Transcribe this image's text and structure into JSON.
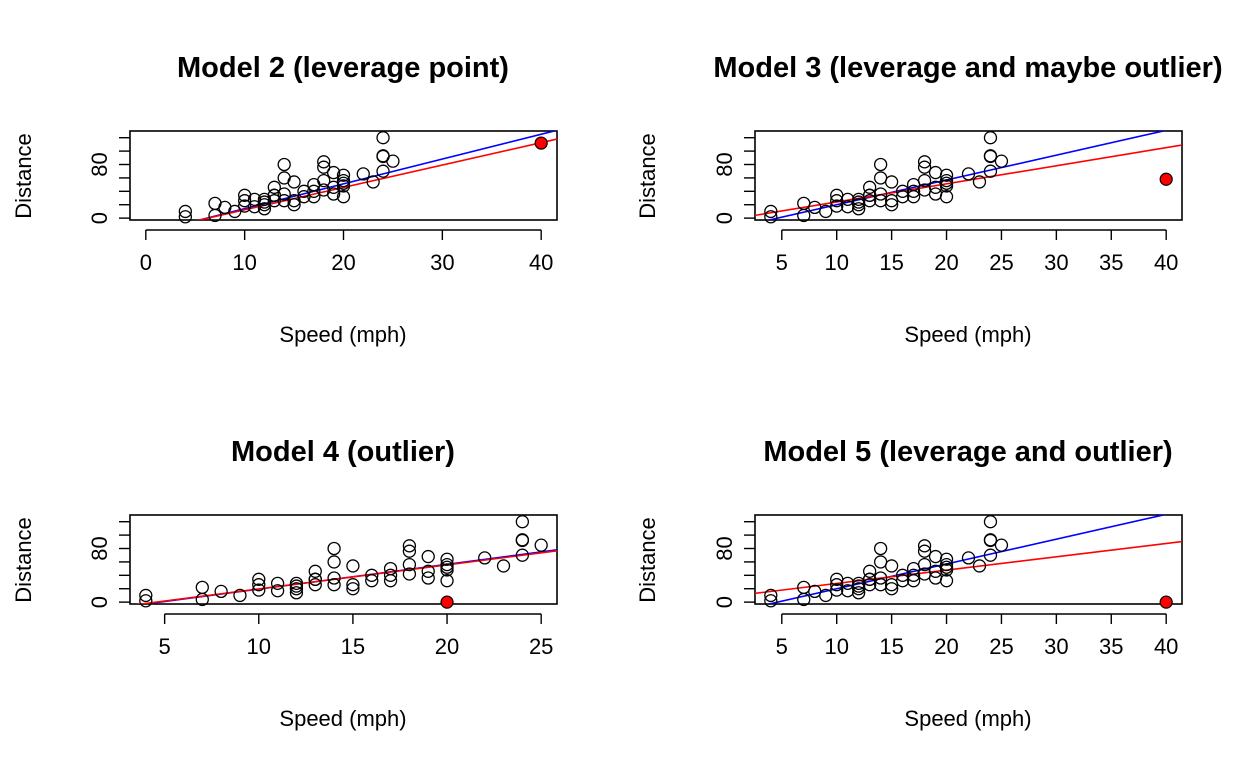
{
  "chart_data": [
    {
      "type": "scatter",
      "title": "Model 2 (leverage point)",
      "xlabel": "Speed (mph)",
      "ylabel": "Distance",
      "xlim": [
        -1.6,
        41.6
      ],
      "ylim": [
        -2.8,
        130
      ],
      "xticks": [
        "0",
        "10",
        "20",
        "30",
        "40"
      ],
      "yticks": [
        "0",
        "80"
      ],
      "points": [
        [
          4,
          2
        ],
        [
          4,
          10
        ],
        [
          7,
          4
        ],
        [
          7,
          22
        ],
        [
          8,
          16
        ],
        [
          9,
          10
        ],
        [
          10,
          18
        ],
        [
          10,
          26
        ],
        [
          10,
          34
        ],
        [
          11,
          17
        ],
        [
          11,
          28
        ],
        [
          12,
          14
        ],
        [
          12,
          20
        ],
        [
          12,
          24
        ],
        [
          12,
          28
        ],
        [
          13,
          26
        ],
        [
          13,
          34
        ],
        [
          13,
          34
        ],
        [
          13,
          46
        ],
        [
          14,
          26
        ],
        [
          14,
          36
        ],
        [
          14,
          60
        ],
        [
          14,
          80
        ],
        [
          15,
          20
        ],
        [
          15,
          26
        ],
        [
          15,
          54
        ],
        [
          16,
          32
        ],
        [
          16,
          40
        ],
        [
          17,
          32
        ],
        [
          17,
          40
        ],
        [
          17,
          50
        ],
        [
          18,
          42
        ],
        [
          18,
          56
        ],
        [
          18,
          76
        ],
        [
          18,
          84
        ],
        [
          19,
          36
        ],
        [
          19,
          46
        ],
        [
          19,
          68
        ],
        [
          20,
          32
        ],
        [
          20,
          48
        ],
        [
          20,
          52
        ],
        [
          20,
          56
        ],
        [
          20,
          64
        ],
        [
          22,
          66
        ],
        [
          23,
          54
        ],
        [
          24,
          70
        ],
        [
          24,
          92
        ],
        [
          24,
          93
        ],
        [
          24,
          120
        ],
        [
          25,
          85
        ]
      ],
      "special_point": [
        40,
        112
      ],
      "series": [
        {
          "name": "",
          "color": "#0000ff",
          "line": [
            [
              -1.6,
              -28.8
            ],
            [
              41.6,
              131.1
            ]
          ]
        },
        {
          "name": "",
          "color": "#ff0000",
          "line": [
            [
              -1.6,
              -26.4
            ],
            [
              41.6,
              118.0
            ]
          ]
        }
      ]
    },
    {
      "type": "scatter",
      "title": "Model 3 (leverage and maybe outlier)",
      "xlabel": "Speed (mph)",
      "ylabel": "Distance",
      "xlim": [
        2.56,
        41.44
      ],
      "ylim": [
        -2.8,
        130
      ],
      "xticks": [
        "5",
        "10",
        "15",
        "20",
        "25",
        "30",
        "35",
        "40"
      ],
      "yticks": [
        "0",
        "80"
      ],
      "points": [
        [
          4,
          2
        ],
        [
          4,
          10
        ],
        [
          7,
          4
        ],
        [
          7,
          22
        ],
        [
          8,
          16
        ],
        [
          9,
          10
        ],
        [
          10,
          18
        ],
        [
          10,
          26
        ],
        [
          10,
          34
        ],
        [
          11,
          17
        ],
        [
          11,
          28
        ],
        [
          12,
          14
        ],
        [
          12,
          20
        ],
        [
          12,
          24
        ],
        [
          12,
          28
        ],
        [
          13,
          26
        ],
        [
          13,
          34
        ],
        [
          13,
          34
        ],
        [
          13,
          46
        ],
        [
          14,
          26
        ],
        [
          14,
          36
        ],
        [
          14,
          60
        ],
        [
          14,
          80
        ],
        [
          15,
          20
        ],
        [
          15,
          26
        ],
        [
          15,
          54
        ],
        [
          16,
          32
        ],
        [
          16,
          40
        ],
        [
          17,
          32
        ],
        [
          17,
          40
        ],
        [
          17,
          50
        ],
        [
          18,
          42
        ],
        [
          18,
          56
        ],
        [
          18,
          76
        ],
        [
          18,
          84
        ],
        [
          19,
          36
        ],
        [
          19,
          46
        ],
        [
          19,
          68
        ],
        [
          20,
          32
        ],
        [
          20,
          48
        ],
        [
          20,
          52
        ],
        [
          20,
          56
        ],
        [
          20,
          64
        ],
        [
          22,
          66
        ],
        [
          23,
          54
        ],
        [
          24,
          70
        ],
        [
          24,
          92
        ],
        [
          24,
          93
        ],
        [
          24,
          120
        ],
        [
          25,
          85
        ]
      ],
      "special_point": [
        40,
        58
      ],
      "series": [
        {
          "name": "",
          "color": "#0000ff",
          "line": [
            [
              2.56,
              -7.6
            ],
            [
              41.44,
              136.3
            ]
          ]
        },
        {
          "name": "",
          "color": "#ff0000",
          "line": [
            [
              2.56,
              4.1
            ],
            [
              41.44,
              109.0
            ]
          ]
        }
      ]
    },
    {
      "type": "scatter",
      "title": "Model 4 (outlier)",
      "xlabel": "Speed (mph)",
      "ylabel": "Distance",
      "xlim": [
        3.16,
        25.84
      ],
      "ylim": [
        -2.8,
        130
      ],
      "xticks": [
        "5",
        "10",
        "15",
        "20",
        "25"
      ],
      "yticks": [
        "0",
        "80"
      ],
      "points": [
        [
          4,
          2
        ],
        [
          4,
          10
        ],
        [
          7,
          4
        ],
        [
          7,
          22
        ],
        [
          8,
          16
        ],
        [
          9,
          10
        ],
        [
          10,
          18
        ],
        [
          10,
          26
        ],
        [
          10,
          34
        ],
        [
          11,
          17
        ],
        [
          11,
          28
        ],
        [
          12,
          14
        ],
        [
          12,
          20
        ],
        [
          12,
          24
        ],
        [
          12,
          28
        ],
        [
          13,
          26
        ],
        [
          13,
          34
        ],
        [
          13,
          34
        ],
        [
          13,
          46
        ],
        [
          14,
          26
        ],
        [
          14,
          36
        ],
        [
          14,
          60
        ],
        [
          14,
          80
        ],
        [
          15,
          20
        ],
        [
          15,
          26
        ],
        [
          15,
          54
        ],
        [
          16,
          32
        ],
        [
          16,
          40
        ],
        [
          17,
          32
        ],
        [
          17,
          40
        ],
        [
          17,
          50
        ],
        [
          18,
          42
        ],
        [
          18,
          56
        ],
        [
          18,
          76
        ],
        [
          18,
          84
        ],
        [
          19,
          36
        ],
        [
          19,
          46
        ],
        [
          19,
          68
        ],
        [
          20,
          32
        ],
        [
          20,
          48
        ],
        [
          20,
          52
        ],
        [
          20,
          56
        ],
        [
          20,
          64
        ],
        [
          22,
          66
        ],
        [
          23,
          54
        ],
        [
          24,
          70
        ],
        [
          24,
          92
        ],
        [
          24,
          93
        ],
        [
          24,
          120
        ],
        [
          25,
          85
        ]
      ],
      "special_point": [
        20,
        0
      ],
      "series": [
        {
          "name": "",
          "color": "#0000ff",
          "line": [
            [
              3.16,
              -5.9
            ],
            [
              25.84,
              78.0
            ]
          ]
        },
        {
          "name": "",
          "color": "#ff0000",
          "line": [
            [
              3.16,
              -5.0
            ],
            [
              25.84,
              76.5
            ]
          ]
        }
      ]
    },
    {
      "type": "scatter",
      "title": "Model 5 (leverage and outlier)",
      "xlabel": "Speed (mph)",
      "ylabel": "Distance",
      "xlim": [
        2.56,
        41.44
      ],
      "ylim": [
        -2.8,
        130
      ],
      "xticks": [
        "5",
        "10",
        "15",
        "20",
        "25",
        "30",
        "35",
        "40"
      ],
      "yticks": [
        "0",
        "80"
      ],
      "points": [
        [
          4,
          2
        ],
        [
          4,
          10
        ],
        [
          7,
          4
        ],
        [
          7,
          22
        ],
        [
          8,
          16
        ],
        [
          9,
          10
        ],
        [
          10,
          18
        ],
        [
          10,
          26
        ],
        [
          10,
          34
        ],
        [
          11,
          17
        ],
        [
          11,
          28
        ],
        [
          12,
          14
        ],
        [
          12,
          20
        ],
        [
          12,
          24
        ],
        [
          12,
          28
        ],
        [
          13,
          26
        ],
        [
          13,
          34
        ],
        [
          13,
          34
        ],
        [
          13,
          46
        ],
        [
          14,
          26
        ],
        [
          14,
          36
        ],
        [
          14,
          60
        ],
        [
          14,
          80
        ],
        [
          15,
          20
        ],
        [
          15,
          26
        ],
        [
          15,
          54
        ],
        [
          16,
          32
        ],
        [
          16,
          40
        ],
        [
          17,
          32
        ],
        [
          17,
          40
        ],
        [
          17,
          50
        ],
        [
          18,
          42
        ],
        [
          18,
          56
        ],
        [
          18,
          76
        ],
        [
          18,
          84
        ],
        [
          19,
          36
        ],
        [
          19,
          46
        ],
        [
          19,
          68
        ],
        [
          20,
          32
        ],
        [
          20,
          48
        ],
        [
          20,
          52
        ],
        [
          20,
          56
        ],
        [
          20,
          64
        ],
        [
          22,
          66
        ],
        [
          23,
          54
        ],
        [
          24,
          70
        ],
        [
          24,
          92
        ],
        [
          24,
          93
        ],
        [
          24,
          120
        ],
        [
          25,
          85
        ]
      ],
      "special_point": [
        40,
        0
      ],
      "series": [
        {
          "name": "",
          "color": "#0000ff",
          "line": [
            [
              2.56,
              -7.6
            ],
            [
              41.44,
              136.3
            ]
          ]
        },
        {
          "name": "",
          "color": "#ff0000",
          "line": [
            [
              2.56,
              13.1
            ],
            [
              41.44,
              90.3
            ]
          ]
        }
      ]
    }
  ]
}
